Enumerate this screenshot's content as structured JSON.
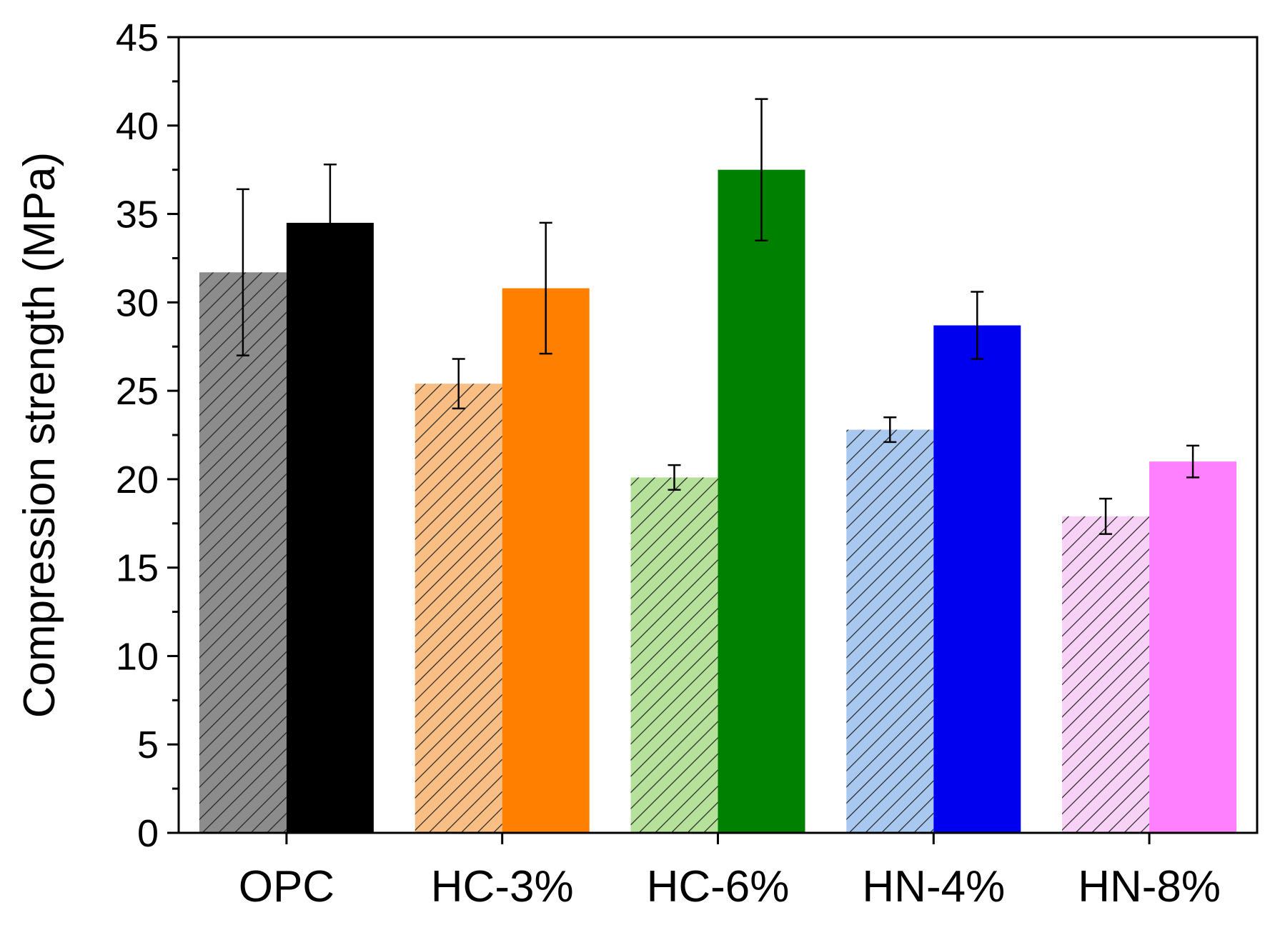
{
  "chart_data": {
    "type": "bar",
    "title": "",
    "xlabel": "",
    "ylabel": "Compression strength (MPa)",
    "ylim": [
      0,
      45
    ],
    "ytick_step": 5,
    "yticks": [
      "0",
      "5",
      "10",
      "15",
      "20",
      "25",
      "30",
      "35",
      "40",
      "45"
    ],
    "categories": [
      "OPC",
      "HC-3%",
      "HC-6%",
      "HN-4%",
      "HN-8%"
    ],
    "series": [
      {
        "name": "hatched",
        "pattern": "hatched",
        "values": [
          31.7,
          25.4,
          20.1,
          22.8,
          17.9
        ],
        "errors": [
          4.7,
          1.4,
          0.7,
          0.7,
          1.0
        ]
      },
      {
        "name": "solid",
        "pattern": "solid",
        "values": [
          34.5,
          30.8,
          37.5,
          28.7,
          21.0
        ],
        "errors": [
          3.3,
          3.7,
          4.0,
          1.9,
          0.9
        ]
      }
    ],
    "hatched_colors": [
      "#8c8c8c",
      "#f9be84",
      "#b6e19a",
      "#a9c8f0",
      "#f8d2f6"
    ],
    "solid_colors": [
      "#000000",
      "#ff8000",
      "#008000",
      "#0000ee",
      "#ff80ff"
    ]
  }
}
